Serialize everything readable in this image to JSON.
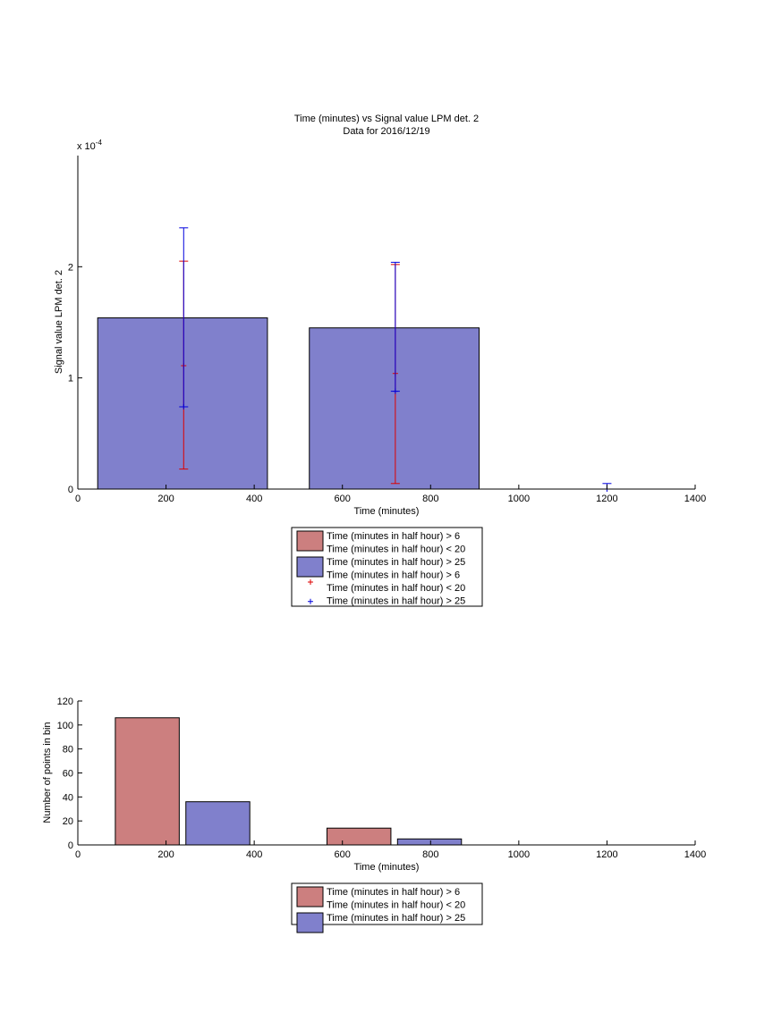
{
  "chart_data": [
    {
      "type": "bar",
      "title": "Time (minutes) vs Signal value LPM det. 2",
      "subtitle": "Data for 2016/12/19",
      "xlabel": "Time (minutes)",
      "ylabel": "Signal value LPM det. 2",
      "y_exponent_label": "x 10",
      "y_exponent_power": "-4",
      "xlim": [
        0,
        1400
      ],
      "ylim": [
        0,
        3
      ],
      "xticks": [
        0,
        200,
        400,
        600,
        800,
        1000,
        1200,
        1400
      ],
      "xtick_labels": [
        "0",
        "200",
        "400",
        "600",
        "800",
        "1000",
        "1200",
        "1400"
      ],
      "yticks": [
        0,
        1,
        2
      ],
      "ytick_labels": [
        "0",
        "1",
        "2"
      ],
      "grid": false,
      "legend_position": "below",
      "bars": [
        {
          "x0": 45,
          "x1": 430,
          "value": 1.54,
          "color": "#8080cc"
        },
        {
          "x0": 525,
          "x1": 910,
          "value": 1.45,
          "color": "#8080cc"
        }
      ],
      "series": [
        {
          "name": "Time (minutes in half hour) > 6\nTime (minutes in half hour) < 20",
          "kind": "errorbar",
          "color": "#dd0000",
          "points": [
            {
              "x": 240,
              "y": 1.11,
              "lo": 0.18,
              "hi": 2.05
            },
            {
              "x": 720,
              "y": 1.04,
              "lo": 0.05,
              "hi": 2.02
            }
          ]
        },
        {
          "name": "Time (minutes in half hour) > 25",
          "kind": "errorbar",
          "color": "#0000dd",
          "points": [
            {
              "x": 240,
              "y": 0.74,
              "lo": 0.74,
              "hi": 2.35
            },
            {
              "x": 720,
              "y": 0.88,
              "lo": 0.88,
              "hi": 2.04
            },
            {
              "x": 1200,
              "y": 0.0,
              "lo": 0.0,
              "hi": 0.05
            }
          ]
        }
      ],
      "legend": [
        {
          "kind": "patch",
          "color": "#cc7f7f",
          "lines": [
            "Time (minutes in half hour) > 6",
            "Time (minutes in half hour) < 20"
          ]
        },
        {
          "kind": "patch",
          "color": "#8080cc",
          "lines": [
            "Time (minutes in half hour) > 25"
          ]
        },
        {
          "kind": "marker",
          "color": "#dd0000",
          "lines": [
            "Time (minutes in half hour) > 6",
            "Time (minutes in half hour) < 20"
          ]
        },
        {
          "kind": "marker",
          "color": "#0000dd",
          "lines": [
            "Time (minutes in half hour) > 25"
          ]
        }
      ]
    },
    {
      "type": "bar",
      "title": "",
      "xlabel": "Time (minutes)",
      "ylabel": "Number of points in bin",
      "xlim": [
        0,
        1400
      ],
      "ylim": [
        0,
        120
      ],
      "xticks": [
        0,
        200,
        400,
        600,
        800,
        1000,
        1200,
        1400
      ],
      "xtick_labels": [
        "0",
        "200",
        "400",
        "600",
        "800",
        "1000",
        "1200",
        "1400"
      ],
      "yticks": [
        0,
        20,
        40,
        60,
        80,
        100,
        120
      ],
      "ytick_labels": [
        "0",
        "20",
        "40",
        "60",
        "80",
        "100",
        "120"
      ],
      "grid": false,
      "legend_position": "below",
      "bars": [
        {
          "x0": 85,
          "x1": 230,
          "value": 106,
          "color": "#cc7f7f"
        },
        {
          "x0": 245,
          "x1": 390,
          "value": 36,
          "color": "#8080cc"
        },
        {
          "x0": 565,
          "x1": 710,
          "value": 14,
          "color": "#cc7f7f"
        },
        {
          "x0": 725,
          "x1": 870,
          "value": 5,
          "color": "#8080cc"
        }
      ],
      "legend": [
        {
          "kind": "patch",
          "color": "#cc7f7f",
          "lines": [
            "Time (minutes in half hour) > 6",
            "Time (minutes in half hour) < 20"
          ]
        },
        {
          "kind": "patch",
          "color": "#8080cc",
          "lines": [
            "Time (minutes in half hour) > 25"
          ]
        }
      ]
    }
  ]
}
